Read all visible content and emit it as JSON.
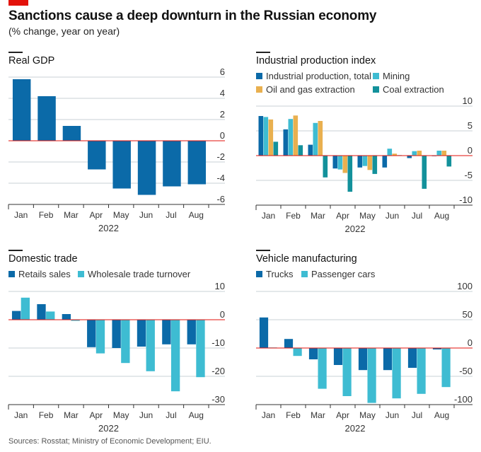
{
  "header": {
    "title": "Sanctions cause a deep downturn in the Russian economy",
    "subtitle": "(% change, year on year)"
  },
  "footer": {
    "source": "Sources: Rosstat; Ministry of Economic Development; EIU."
  },
  "colors": {
    "brand_red": "#e3120b",
    "dark_blue": "#0b6aa8",
    "light_cyan": "#3ebcd2",
    "amber": "#e9b04f",
    "teal": "#13919b",
    "zero_line": "#e3120b",
    "grid": "#c9d1d6"
  },
  "chart_data": [
    {
      "id": "gdp",
      "type": "bar",
      "title": "Real GDP",
      "categories": [
        "Jan",
        "Feb",
        "Mar",
        "Apr",
        "May",
        "Jun",
        "Jul",
        "Aug"
      ],
      "xlabel": "2022",
      "ylabel": "",
      "ylim": [
        -6,
        6
      ],
      "yticks": [
        6,
        4,
        2,
        0,
        -2,
        -4,
        -6
      ],
      "ytick_labels": [
        "6",
        "4",
        "2",
        "0",
        "-2",
        "-4",
        "-6"
      ],
      "grid": true,
      "legend": null,
      "series": [
        {
          "name": "Real GDP",
          "color": "#0b6aa8",
          "values": [
            5.8,
            4.2,
            1.4,
            -2.7,
            -4.5,
            -5.1,
            -4.3,
            -4.1
          ]
        }
      ]
    },
    {
      "id": "industrial",
      "type": "bar",
      "title": "Industrial production index",
      "categories": [
        "Jan",
        "Feb",
        "Mar",
        "Apr",
        "May",
        "Jun",
        "Jul",
        "Aug"
      ],
      "xlabel": "2022",
      "ylabel": "",
      "ylim": [
        -10,
        10
      ],
      "yticks": [
        10,
        5,
        0,
        -5,
        -10
      ],
      "ytick_labels": [
        "10",
        "5",
        "0",
        "-5",
        "-10"
      ],
      "grid": true,
      "legend": "top-left",
      "series": [
        {
          "name": "Industrial production, total",
          "color": "#0b6aa8",
          "values": [
            8.0,
            5.3,
            2.2,
            -2.6,
            -2.4,
            -2.4,
            -0.5,
            -0.1
          ]
        },
        {
          "name": "Mining",
          "color": "#3ebcd2",
          "values": [
            7.8,
            7.4,
            6.6,
            -2.8,
            -2.1,
            1.4,
            0.9,
            1.0
          ]
        },
        {
          "name": "Oil and gas extraction",
          "color": "#e9b04f",
          "values": [
            7.3,
            8.1,
            7.0,
            -3.5,
            -2.9,
            0.4,
            1.0,
            1.0
          ]
        },
        {
          "name": "Coal extraction",
          "color": "#13919b",
          "values": [
            2.8,
            2.1,
            -4.4,
            -7.3,
            -3.7,
            0.1,
            -6.7,
            -2.2
          ]
        }
      ]
    },
    {
      "id": "trade",
      "type": "bar",
      "title": "Domestic trade",
      "categories": [
        "Jan",
        "Feb",
        "Mar",
        "Apr",
        "May",
        "Jun",
        "Jul",
        "Aug"
      ],
      "xlabel": "2022",
      "ylabel": "",
      "ylim": [
        -30,
        10
      ],
      "yticks": [
        10,
        0,
        -10,
        -20,
        -30
      ],
      "ytick_labels": [
        "10",
        "0",
        "-10",
        "-20",
        "-30"
      ],
      "grid": true,
      "legend": "top-left",
      "series": [
        {
          "name": "Retails sales",
          "color": "#0b6aa8",
          "values": [
            3.1,
            5.5,
            2.0,
            -9.7,
            -10.0,
            -9.5,
            -8.7,
            -8.7
          ]
        },
        {
          "name": "Wholesale trade turnover",
          "color": "#3ebcd2",
          "values": [
            7.8,
            2.9,
            -0.4,
            -11.9,
            -15.3,
            -18.2,
            -25.3,
            -20.3
          ]
        }
      ]
    },
    {
      "id": "vehicles",
      "type": "bar",
      "title": "Vehicle manufacturing",
      "categories": [
        "Jan",
        "Feb",
        "Mar",
        "Apr",
        "May",
        "Jun",
        "Jul",
        "Aug"
      ],
      "xlabel": "2022",
      "ylabel": "",
      "ylim": [
        -100,
        100
      ],
      "yticks": [
        100,
        50,
        0,
        -50,
        -100
      ],
      "ytick_labels": [
        "100",
        "50",
        "0",
        "-50",
        "-100"
      ],
      "grid": true,
      "legend": "top-left",
      "series": [
        {
          "name": "Trucks",
          "color": "#0b6aa8",
          "values": [
            54,
            16,
            -20,
            -30,
            -39,
            -39,
            -35,
            -2.5
          ]
        },
        {
          "name": "Passenger cars",
          "color": "#3ebcd2",
          "values": [
            1,
            -14,
            -72,
            -85,
            -97,
            -89,
            -81,
            -69
          ]
        }
      ]
    }
  ]
}
